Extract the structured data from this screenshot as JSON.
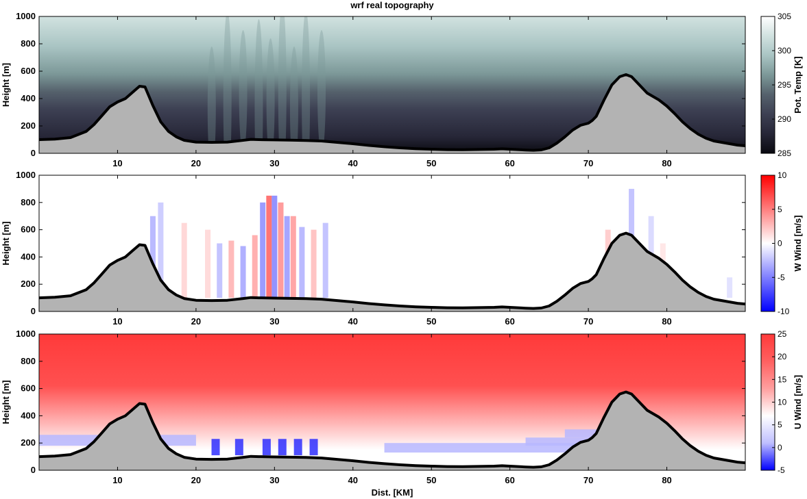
{
  "title": "wrf real topography",
  "xlabel": "Dist. [KM]",
  "chart_data": [
    {
      "type": "heatmap",
      "field": "potential_temperature",
      "ylabel": "Height [m]",
      "colorbar_label": "Pot. Temp [K]",
      "colorbar_ticks": [
        "285",
        "290",
        "295",
        "300",
        "305"
      ],
      "colorbar_range": [
        285,
        305
      ],
      "colormap": [
        "#0a0a10",
        "#262637",
        "#3d4053",
        "#55616c",
        "#7c9898",
        "#a9c4c3",
        "#d1e2e0",
        "#ffffff"
      ],
      "xlim": [
        0,
        90
      ],
      "ylim": [
        0,
        1000
      ],
      "x_ticks": [
        "10",
        "20",
        "30",
        "40",
        "50",
        "60",
        "70",
        "80"
      ],
      "y_ticks": [
        "0",
        "200",
        "400",
        "600",
        "800",
        "1000"
      ]
    },
    {
      "type": "heatmap",
      "field": "vertical_wind",
      "ylabel": "Height [m]",
      "colorbar_label": "W Wind [m/s]",
      "colorbar_ticks": [
        "-10",
        "-5",
        "0",
        "5",
        "10"
      ],
      "colorbar_range": [
        -10,
        10
      ],
      "colormap": [
        "#0000ff",
        "#7f7fff",
        "#ffffff",
        "#ff7f7f",
        "#ff0000"
      ],
      "xlim": [
        0,
        90
      ],
      "ylim": [
        0,
        1000
      ],
      "x_ticks": [
        "10",
        "20",
        "30",
        "40",
        "50",
        "60",
        "70",
        "80"
      ],
      "y_ticks": [
        "0",
        "200",
        "400",
        "600",
        "800",
        "1000"
      ]
    },
    {
      "type": "heatmap",
      "field": "horizontal_wind",
      "ylabel": "Height [m]",
      "colorbar_label": "U Wind [m/s]",
      "colorbar_ticks": [
        "-5",
        "0",
        "5",
        "10",
        "15",
        "20",
        "25"
      ],
      "colorbar_range": [
        -5,
        25
      ],
      "colormap": [
        "#0000ff",
        "#bfbfff",
        "#ffffff",
        "#ff9f9f",
        "#ff6060",
        "#ff3a3a"
      ],
      "xlim": [
        0,
        90
      ],
      "ylim": [
        0,
        1000
      ],
      "x_ticks": [
        "10",
        "20",
        "30",
        "40",
        "50",
        "60",
        "70",
        "80"
      ],
      "y_ticks": [
        "0",
        "200",
        "400",
        "600",
        "800",
        "1000"
      ]
    }
  ],
  "topography": {
    "x_km": [
      0,
      2,
      4,
      6,
      7,
      8,
      9,
      10,
      11,
      12,
      12.8,
      13.5,
      14.5,
      15.5,
      16.5,
      17.5,
      18.5,
      20,
      22,
      24,
      26,
      27,
      28,
      30,
      32,
      34,
      36,
      38,
      40,
      42,
      44,
      46,
      48,
      50,
      52,
      54,
      56,
      58,
      59,
      60,
      62,
      63,
      64,
      65,
      66,
      67,
      68,
      69,
      70,
      70.5,
      71,
      72,
      73,
      74,
      74.8,
      75.5,
      76.5,
      77.5,
      79,
      80,
      81,
      82,
      83,
      84,
      85,
      86,
      87,
      88,
      89,
      90
    ],
    "height_m": [
      100,
      104,
      115,
      160,
      210,
      275,
      340,
      375,
      400,
      450,
      490,
      485,
      350,
      230,
      160,
      120,
      95,
      82,
      80,
      82,
      95,
      102,
      100,
      98,
      96,
      94,
      90,
      80,
      70,
      58,
      48,
      40,
      34,
      30,
      27,
      26,
      28,
      30,
      33,
      30,
      24,
      22,
      25,
      40,
      75,
      120,
      170,
      205,
      220,
      240,
      270,
      390,
      500,
      560,
      575,
      560,
      500,
      440,
      390,
      345,
      290,
      230,
      180,
      140,
      110,
      90,
      80,
      70,
      60,
      55
    ],
    "color": "#b3b3b3"
  }
}
